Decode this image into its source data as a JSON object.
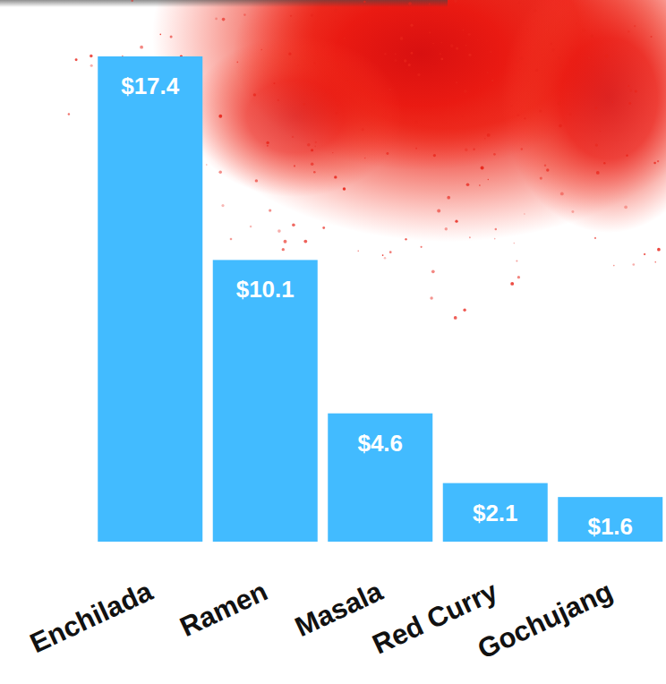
{
  "chart_data": {
    "type": "bar",
    "categories": [
      "Enchilada",
      "Ramen",
      "Masala",
      "Red Curry",
      "Gochujang"
    ],
    "values": [
      17.4,
      10.1,
      4.6,
      2.1,
      1.6
    ],
    "value_labels": [
      "$17.4",
      "$10.1",
      "$4.6",
      "$2.1",
      "$1.6"
    ],
    "color": "#42bbff",
    "ylim": [
      0,
      17.4
    ],
    "data_labels": true,
    "tick_labels": "x"
  }
}
